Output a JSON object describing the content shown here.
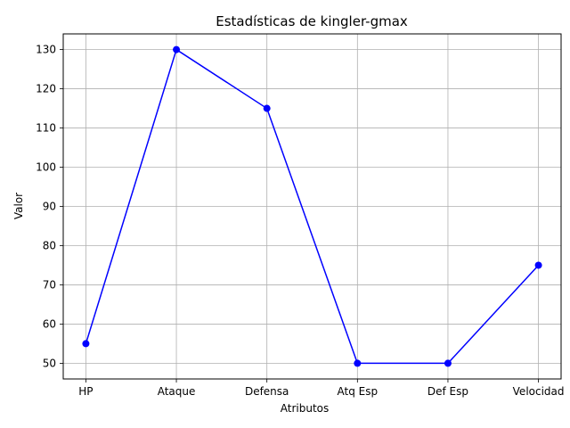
{
  "chart_data": {
    "type": "line",
    "title": "Estadísticas de kingler-gmax",
    "xlabel": "Atributos",
    "ylabel": "Valor",
    "categories": [
      "HP",
      "Ataque",
      "Defensa",
      "Atq Esp",
      "Def Esp",
      "Velocidad"
    ],
    "series": [
      {
        "values": [
          55,
          130,
          115,
          50,
          50,
          75
        ]
      }
    ],
    "ylim": [
      46,
      134
    ],
    "yticks": [
      50,
      60,
      70,
      80,
      90,
      100,
      110,
      120,
      130
    ],
    "grid": true,
    "marker": "circle",
    "line_color": "#0000ff",
    "grid_color": "#b0b0b0"
  }
}
